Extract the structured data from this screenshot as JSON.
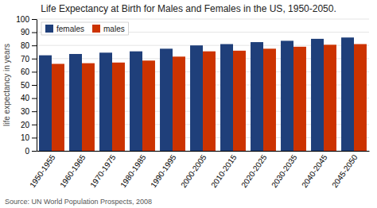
{
  "chart_data": {
    "type": "bar",
    "title": "Life Expectancy at Birth for Males and Females in the US, 1950-2050.",
    "ylabel": "life expectancy in years",
    "source": "Source: UN World Population Prospects, 2008",
    "categories": [
      "1950-1955",
      "1960-1965",
      "1970-1975",
      "1980-1985",
      "1990-1995",
      "2000-2005",
      "2010-2015",
      "2020-2025",
      "2030-2035",
      "2040-2045",
      "2045-2050"
    ],
    "series": [
      {
        "name": "females",
        "color": "#1F3F7A",
        "values": [
          72.5,
          73.5,
          74.5,
          75.5,
          77.5,
          80.0,
          81.0,
          82.5,
          83.5,
          85.0,
          86.0
        ]
      },
      {
        "name": "males",
        "color": "#CC3300",
        "values": [
          66.0,
          66.5,
          67.0,
          68.5,
          71.5,
          75.5,
          76.0,
          77.5,
          79.0,
          80.5,
          81.0
        ]
      }
    ],
    "ylim": [
      0,
      100
    ],
    "yticks": [
      0,
      10,
      20,
      30,
      40,
      50,
      60,
      70,
      80,
      90,
      100
    ],
    "grid": true,
    "legend": "upper left"
  }
}
